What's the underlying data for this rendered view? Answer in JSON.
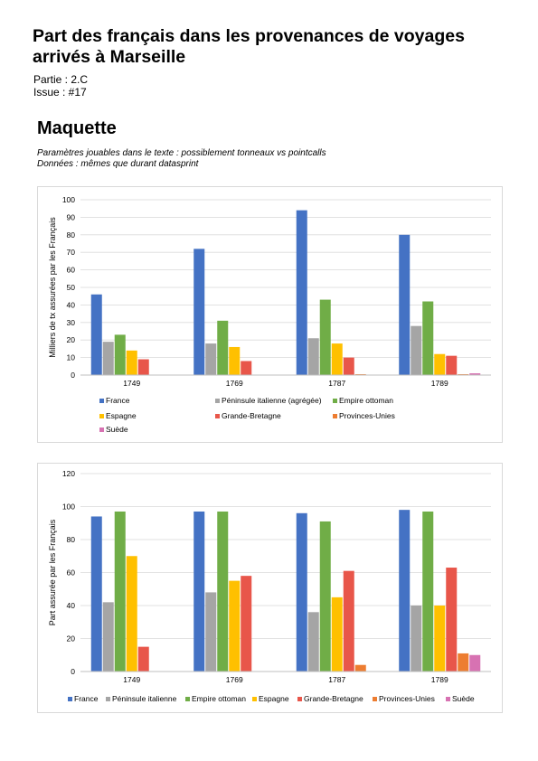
{
  "header": {
    "title": "Part des français dans les provenances de voyages arrivés à Marseille",
    "partie": "Partie : 2.C",
    "issue": "Issue : #17"
  },
  "section": {
    "title": "Maquette",
    "note_line1": "Paramètres jouables dans le texte : possiblement tonneaux vs pointcalls",
    "note_line2": "Données : mêmes que durant datasprint"
  },
  "colors": {
    "France": "#4472c4",
    "Péninsule italienne": "#a5a5a5",
    "Empire ottoman": "#70ad47",
    "Espagne": "#ffc000",
    "Grande-Bretagne": "#e8564a",
    "Provinces-Unies": "#ed7d31",
    "Suède": "#d772b2",
    "grid": "#d9d9d9"
  },
  "chart_data": [
    {
      "type": "bar",
      "title": "",
      "xlabel": "",
      "ylabel": "Milliers de tx assurées par les Français",
      "ylim": [
        0,
        100
      ],
      "yticks": [
        0,
        10,
        20,
        30,
        40,
        50,
        60,
        70,
        80,
        90,
        100
      ],
      "grid": true,
      "legend_position": "bottom",
      "categories": [
        "1749",
        "1769",
        "1787",
        "1789"
      ],
      "series": [
        {
          "name": "France",
          "values": [
            46,
            72,
            94,
            80
          ]
        },
        {
          "name": "Péninsule italienne (agrégée)",
          "values": [
            19,
            18,
            21,
            28
          ]
        },
        {
          "name": "Empire ottoman",
          "values": [
            23,
            31,
            43,
            42
          ]
        },
        {
          "name": "Espagne",
          "values": [
            14,
            16,
            18,
            12
          ]
        },
        {
          "name": "Grande-Bretagne",
          "values": [
            9,
            8,
            10,
            11
          ]
        },
        {
          "name": "Provinces-Unies",
          "values": [
            0,
            0,
            0.5,
            0.5
          ]
        },
        {
          "name": "Suède",
          "values": [
            0,
            0,
            0,
            1
          ]
        }
      ]
    },
    {
      "type": "bar",
      "title": "",
      "xlabel": "",
      "ylabel": "Part assurée par les Français",
      "ylim": [
        0,
        120
      ],
      "yticks": [
        0,
        20,
        40,
        60,
        80,
        100,
        120
      ],
      "grid": true,
      "legend_position": "bottom",
      "categories": [
        "1749",
        "1769",
        "1787",
        "1789"
      ],
      "series": [
        {
          "name": "France",
          "values": [
            94,
            97,
            96,
            98
          ]
        },
        {
          "name": "Péninsule italienne",
          "values": [
            42,
            48,
            36,
            40
          ]
        },
        {
          "name": "Empire ottoman",
          "values": [
            97,
            97,
            91,
            97
          ]
        },
        {
          "name": "Espagne",
          "values": [
            70,
            55,
            45,
            40
          ]
        },
        {
          "name": "Grande-Bretagne",
          "values": [
            15,
            58,
            61,
            63
          ]
        },
        {
          "name": "Provinces-Unies",
          "values": [
            0,
            0,
            4,
            11
          ]
        },
        {
          "name": "Suède",
          "values": [
            0,
            0,
            0,
            10
          ]
        }
      ]
    }
  ]
}
